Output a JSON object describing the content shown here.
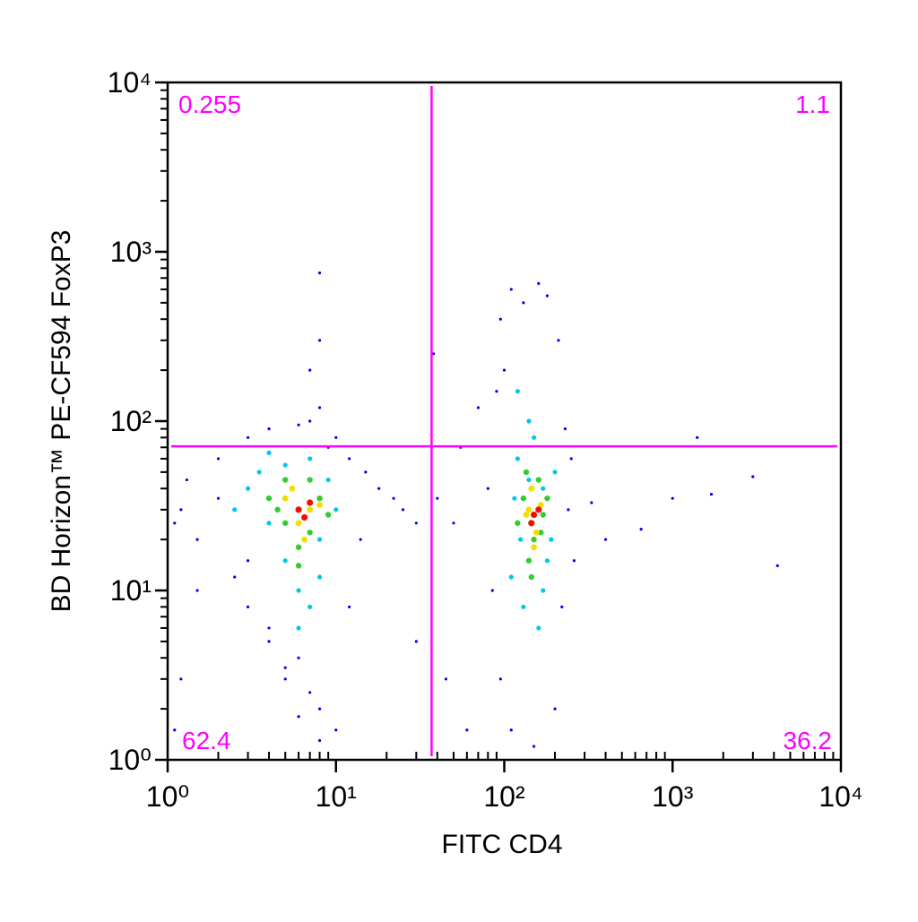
{
  "chart_data": {
    "type": "scatter",
    "x_label": "FITC CD4",
    "y_label": "BD Horizon™ PE-CF594 FoxP3",
    "xscale": "log",
    "yscale": "log",
    "xlim": [
      1,
      10000
    ],
    "ylim": [
      1,
      10000
    ],
    "xticks": [
      {
        "value": 1,
        "label": "10⁰"
      },
      {
        "value": 10,
        "label": "10¹"
      },
      {
        "value": 100,
        "label": "10²"
      },
      {
        "value": 1000,
        "label": "10³"
      },
      {
        "value": 10000,
        "label": "10⁴"
      }
    ],
    "yticks": [
      {
        "value": 1,
        "label": "10⁰"
      },
      {
        "value": 10,
        "label": "10¹"
      },
      {
        "value": 100,
        "label": "10²"
      },
      {
        "value": 1000,
        "label": "10³"
      },
      {
        "value": 10000,
        "label": "10⁴"
      }
    ],
    "xminorticks": [
      2,
      3,
      4,
      5,
      6,
      7,
      8,
      9,
      20,
      30,
      40,
      50,
      60,
      70,
      80,
      90,
      200,
      300,
      400,
      500,
      600,
      700,
      800,
      900,
      2000,
      3000,
      4000,
      5000,
      6000,
      7000,
      8000,
      9000
    ],
    "yminorticks": [
      2,
      3,
      4,
      5,
      6,
      7,
      8,
      9,
      20,
      30,
      40,
      50,
      60,
      70,
      80,
      90,
      200,
      300,
      400,
      500,
      600,
      700,
      800,
      900,
      2000,
      3000,
      4000,
      5000,
      6000,
      7000,
      8000,
      9000
    ],
    "gate": {
      "x": 37,
      "y": 71,
      "color": "#ff00ff"
    },
    "quadrants": {
      "top_left": 0.255,
      "top_right": 1.1,
      "bottom_left": 62.4,
      "bottom_right": 36.2
    },
    "series": [
      {
        "color": "#0000ee",
        "x": [
          1.2,
          1.5,
          1.3,
          2,
          2.5,
          3,
          4,
          5,
          8,
          10,
          12,
          14,
          15,
          3,
          4,
          6,
          7,
          9,
          5,
          6,
          8,
          7,
          6,
          4,
          3,
          2,
          1.5,
          1.1,
          18,
          22,
          25,
          30,
          12,
          10,
          8,
          7,
          8,
          8,
          1.2,
          1.1,
          95,
          110,
          130,
          160,
          180,
          100,
          90,
          210,
          230,
          250,
          80,
          85,
          95,
          110,
          150,
          200,
          220,
          240,
          260,
          70,
          40,
          50,
          60,
          45,
          30,
          400,
          650,
          1000,
          1700,
          3000,
          4200,
          1400,
          330,
          38,
          55
        ],
        "values": [
          30,
          20,
          45,
          60,
          12,
          8,
          5,
          3,
          2,
          1.5,
          8,
          20,
          50,
          80,
          90,
          95,
          100,
          70,
          3.5,
          1.8,
          1.3,
          2.5,
          4,
          6,
          15,
          35,
          10,
          25,
          40,
          35,
          30,
          25,
          60,
          80,
          120,
          200,
          300,
          750,
          3,
          1.5,
          400,
          600,
          500,
          650,
          550,
          200,
          150,
          300,
          90,
          60,
          40,
          10,
          3,
          1.5,
          1.2,
          2,
          8,
          30,
          15,
          120,
          35,
          25,
          1.5,
          3,
          5,
          20,
          23,
          35,
          37,
          47,
          14,
          80,
          33,
          250,
          70
        ]
      },
      {
        "color": "#00c8e6",
        "x": [
          3,
          4,
          5,
          6,
          7,
          8,
          10,
          9,
          5,
          3.5,
          2.5,
          4,
          7,
          6,
          8,
          120,
          140,
          170,
          190,
          110,
          130,
          160,
          180,
          115,
          200,
          140,
          120,
          150,
          170,
          125
        ],
        "values": [
          40,
          25,
          15,
          10,
          8,
          12,
          30,
          45,
          55,
          50,
          30,
          65,
          60,
          6,
          20,
          60,
          45,
          40,
          20,
          12,
          8,
          6,
          15,
          35,
          50,
          100,
          150,
          80,
          10,
          20
        ]
      },
      {
        "color": "#33cc33",
        "x": [
          4,
          5,
          6,
          7,
          8,
          5,
          4.5,
          7,
          9,
          6,
          130,
          150,
          170,
          140,
          160,
          120,
          180,
          145,
          135,
          165
        ],
        "values": [
          35,
          25,
          18,
          22,
          35,
          45,
          30,
          45,
          28,
          14,
          35,
          20,
          28,
          15,
          45,
          25,
          35,
          12,
          50,
          22
        ]
      },
      {
        "color": "#f0e000",
        "x": [
          5,
          6,
          7,
          5.5,
          8,
          6.5,
          140,
          155,
          165,
          145,
          150,
          135
        ],
        "values": [
          35,
          25,
          30,
          40,
          32,
          20,
          30,
          22,
          32,
          40,
          18,
          28
        ]
      },
      {
        "color": "#ee1100",
        "x": [
          6,
          7,
          6.5,
          150,
          160,
          145
        ],
        "values": [
          30,
          33,
          27,
          28,
          30,
          25
        ]
      }
    ]
  }
}
